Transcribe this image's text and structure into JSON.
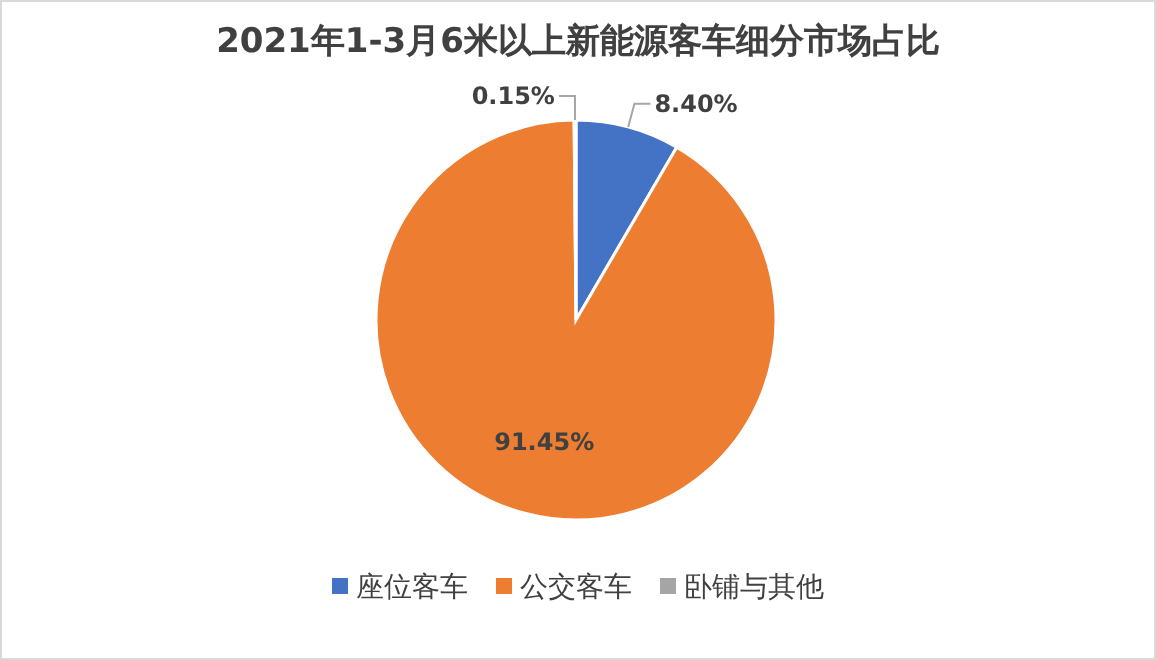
{
  "chart_data": {
    "type": "pie",
    "title": "2021年1-3月6米以上新能源客车细分市场占比",
    "categories": [
      "座位客车",
      "公交客车",
      "卧铺与其他"
    ],
    "values": [
      8.4,
      91.45,
      0.15
    ],
    "colors": [
      "#4472c4",
      "#ed7d31",
      "#a5a5a5"
    ],
    "value_labels": [
      "8.40%",
      "91.45%",
      "0.15%"
    ],
    "legend": "bottom"
  }
}
